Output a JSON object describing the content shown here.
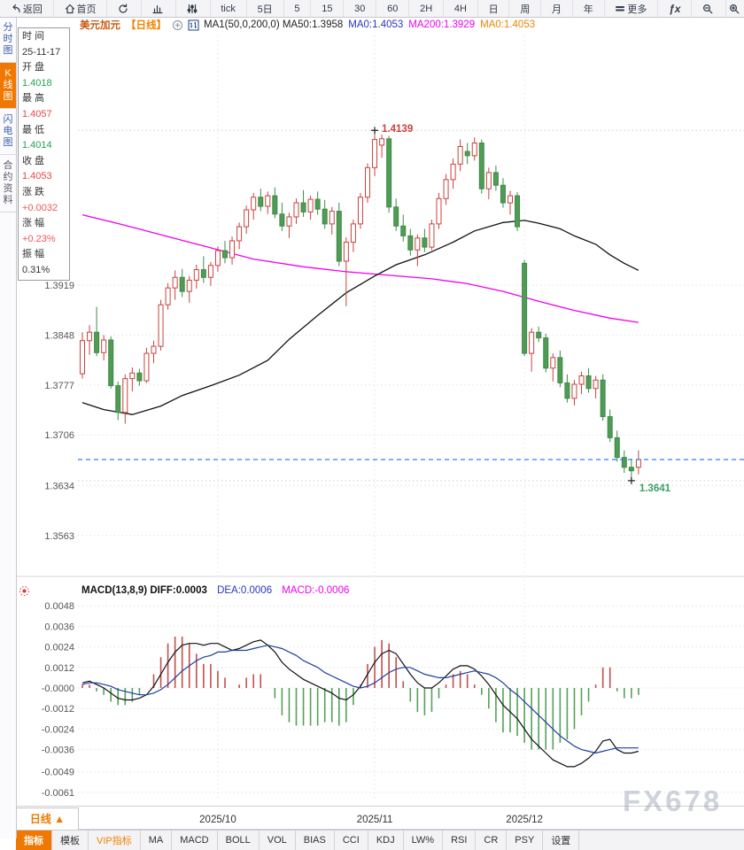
{
  "toolbar": {
    "items": [
      {
        "id": "back",
        "icon": "back",
        "label": "返回"
      },
      {
        "id": "home",
        "icon": "home",
        "label": "首页"
      },
      {
        "id": "refresh",
        "icon": "refresh",
        "label": ""
      },
      {
        "id": "chart-style",
        "icon": "bar-chart",
        "label": ""
      },
      {
        "id": "indicator-settings",
        "icon": "sliders",
        "label": ""
      },
      {
        "id": "period-tick",
        "icon": "",
        "label": "tick"
      },
      {
        "id": "period-5d",
        "icon": "",
        "label": "5日"
      },
      {
        "id": "period-5",
        "icon": "",
        "label": "5"
      },
      {
        "id": "period-15",
        "icon": "",
        "label": "15"
      },
      {
        "id": "period-30",
        "icon": "",
        "label": "30"
      },
      {
        "id": "period-60",
        "icon": "",
        "label": "60"
      },
      {
        "id": "period-2h",
        "icon": "",
        "label": "2H"
      },
      {
        "id": "period-4h",
        "icon": "",
        "label": "4H"
      },
      {
        "id": "period-day",
        "icon": "",
        "label": "日"
      },
      {
        "id": "period-week",
        "icon": "",
        "label": "周"
      },
      {
        "id": "period-month",
        "icon": "",
        "label": "月"
      },
      {
        "id": "period-year",
        "icon": "",
        "label": "年"
      },
      {
        "id": "more",
        "icon": "menu",
        "label": "更多"
      },
      {
        "id": "fx",
        "icon": "",
        "label": "ƒx"
      },
      {
        "id": "zoom-out",
        "icon": "magnifier-minus",
        "label": ""
      },
      {
        "id": "zoom-in",
        "icon": "magnifier-plus",
        "label": ""
      }
    ]
  },
  "title_bar": {
    "symbol": "美元加元",
    "period": "【日线】",
    "ma_group": "MA1(50,0,200,0) MA50:1.3958",
    "ma0_blue": "MA0:1.4053",
    "ma200": "MA200:1.3929",
    "ma0_orange": "MA0:1.4053"
  },
  "side_tabs": [
    {
      "label": "分时图",
      "active": false,
      "color": "#3c5db0"
    },
    {
      "label": "K线图",
      "active": true,
      "color": "#ffffff"
    },
    {
      "label": "闪电图",
      "active": false,
      "color": "#3c5db0"
    },
    {
      "label": "合约资料",
      "active": false,
      "color": "#555566"
    }
  ],
  "info_panel": {
    "rows": [
      {
        "label": "时 间",
        "value": "25-11-17",
        "color": "#333333"
      },
      {
        "label": "开 盘",
        "value": "1.4018",
        "color": "#21a453"
      },
      {
        "label": "最 高",
        "value": "1.4057",
        "color": "#ef4444"
      },
      {
        "label": "最 低",
        "value": "1.4014",
        "color": "#21a453"
      },
      {
        "label": "收 盘",
        "value": "1.4053",
        "color": "#ef4444"
      },
      {
        "label": "涨 跌",
        "value": "+0.0032",
        "color": "#f05858"
      },
      {
        "label": "涨 幅",
        "value": "+0.23%",
        "color": "#f05858"
      },
      {
        "label": "振 幅",
        "value": "0.31%",
        "color": "#333333"
      }
    ]
  },
  "chart_data": {
    "type": "candlestick",
    "title": "美元加元 日线",
    "y_axis_labels": [
      "1.3919",
      "1.3848",
      "1.3777",
      "1.3706",
      "1.3634",
      "1.3563"
    ],
    "x_ticks": [
      {
        "label": "2025/10",
        "index": 19
      },
      {
        "label": "2025/11",
        "index": 41
      },
      {
        "label": "2025/12",
        "index": 62
      }
    ],
    "annotations": {
      "high_label": "1.4139",
      "high_value": 1.4139,
      "high_index": 41,
      "low_label": "1.3641",
      "low_value": 1.3641,
      "low_index": 77
    },
    "current_price": 1.3671,
    "candles": [
      [
        1.3793,
        1.3852,
        1.3786,
        1.384
      ],
      [
        1.384,
        1.3862,
        1.382,
        1.3852
      ],
      [
        1.3852,
        1.3888,
        1.3818,
        1.3823
      ],
      [
        1.3823,
        1.3848,
        1.3812,
        1.3841
      ],
      [
        1.3841,
        1.3846,
        1.3772,
        1.3776
      ],
      [
        1.3776,
        1.3782,
        1.3727,
        1.3738
      ],
      [
        1.3738,
        1.3792,
        1.3722,
        1.3786
      ],
      [
        1.3786,
        1.3802,
        1.3768,
        1.3794
      ],
      [
        1.3794,
        1.38,
        1.3776,
        1.3783
      ],
      [
        1.3783,
        1.383,
        1.378,
        1.3822
      ],
      [
        1.3822,
        1.384,
        1.3808,
        1.3832
      ],
      [
        1.3832,
        1.3898,
        1.3826,
        1.3891
      ],
      [
        1.3891,
        1.3922,
        1.3884,
        1.3915
      ],
      [
        1.3915,
        1.394,
        1.3898,
        1.393
      ],
      [
        1.393,
        1.3942,
        1.3902,
        1.391
      ],
      [
        1.391,
        1.3932,
        1.3894,
        1.3926
      ],
      [
        1.3926,
        1.3948,
        1.3914,
        1.3941
      ],
      [
        1.3941,
        1.396,
        1.3922,
        1.393
      ],
      [
        1.393,
        1.3952,
        1.3918,
        1.3947
      ],
      [
        1.3947,
        1.3974,
        1.3938,
        1.3968
      ],
      [
        1.3968,
        1.3982,
        1.395,
        1.3958
      ],
      [
        1.3958,
        1.3988,
        1.3948,
        1.3982
      ],
      [
        1.3982,
        1.4008,
        1.397,
        1.4002
      ],
      [
        1.4002,
        1.4032,
        1.3992,
        1.4026
      ],
      [
        1.4026,
        1.405,
        1.4012,
        1.4044
      ],
      [
        1.4044,
        1.4056,
        1.4024,
        1.4031
      ],
      [
        1.4031,
        1.4052,
        1.402,
        1.4046
      ],
      [
        1.4046,
        1.4058,
        1.4014,
        1.402
      ],
      [
        1.402,
        1.4036,
        1.3996,
        1.4003
      ],
      [
        1.4003,
        1.4022,
        1.3986,
        1.4016
      ],
      [
        1.4016,
        1.4042,
        1.4006,
        1.4036
      ],
      [
        1.4036,
        1.4054,
        1.4016,
        1.4023
      ],
      [
        1.4023,
        1.4046,
        1.4012,
        1.4041
      ],
      [
        1.4041,
        1.4052,
        1.4019,
        1.4027
      ],
      [
        1.4027,
        1.404,
        1.3999,
        1.4006
      ],
      [
        1.4006,
        1.403,
        1.3991,
        1.4024
      ],
      [
        1.4024,
        1.4036,
        1.3946,
        1.3953
      ],
      [
        1.3953,
        1.3987,
        1.3889,
        1.398
      ],
      [
        1.398,
        1.4012,
        1.3966,
        1.4006
      ],
      [
        1.4006,
        1.405,
        1.3999,
        1.4044
      ],
      [
        1.4044,
        1.4092,
        1.4036,
        1.4086
      ],
      [
        1.4086,
        1.4139,
        1.4074,
        1.4126
      ],
      [
        1.4118,
        1.4133,
        1.41,
        1.4127
      ],
      [
        1.4127,
        1.4131,
        1.4022,
        1.403
      ],
      [
        1.403,
        1.4042,
        1.3996,
        1.4003
      ],
      [
        1.4003,
        1.4019,
        1.3981,
        1.3989
      ],
      [
        1.3989,
        1.3999,
        1.3961,
        1.3969
      ],
      [
        1.3969,
        1.3991,
        1.3946,
        1.3986
      ],
      [
        1.3986,
        1.3999,
        1.3966,
        1.3973
      ],
      [
        1.3973,
        1.4012,
        1.3969,
        1.4006
      ],
      [
        1.4006,
        1.405,
        1.3999,
        1.4042
      ],
      [
        1.4042,
        1.4077,
        1.4033,
        1.4069
      ],
      [
        1.4069,
        1.4099,
        1.4056,
        1.4091
      ],
      [
        1.4091,
        1.4126,
        1.4081,
        1.4116
      ],
      [
        1.4109,
        1.4121,
        1.4091,
        1.4103
      ],
      [
        1.4103,
        1.4129,
        1.4096,
        1.4121
      ],
      [
        1.4121,
        1.4126,
        1.4049,
        1.4056
      ],
      [
        1.4056,
        1.4086,
        1.4041,
        1.4079
      ],
      [
        1.4079,
        1.4089,
        1.4053,
        1.4061
      ],
      [
        1.4061,
        1.4071,
        1.4029,
        1.4036
      ],
      [
        1.4036,
        1.4053,
        1.4019,
        1.4046
      ],
      [
        1.4046,
        1.4051,
        1.3996,
        1.4002
      ],
      [
        1.395,
        1.3955,
        1.3818,
        1.3822
      ],
      [
        1.3822,
        1.3858,
        1.3796,
        1.3852
      ],
      [
        1.3852,
        1.386,
        1.3838,
        1.3844
      ],
      [
        1.3844,
        1.385,
        1.3795,
        1.3801
      ],
      [
        1.3801,
        1.3822,
        1.3782,
        1.3816
      ],
      [
        1.3816,
        1.3826,
        1.3774,
        1.378
      ],
      [
        1.378,
        1.3792,
        1.3752,
        1.3758
      ],
      [
        1.3758,
        1.3784,
        1.3748,
        1.3778
      ],
      [
        1.3778,
        1.3796,
        1.3764,
        1.379
      ],
      [
        1.379,
        1.3801,
        1.3766,
        1.3772
      ],
      [
        1.3772,
        1.379,
        1.3758,
        1.3784
      ],
      [
        1.3784,
        1.3792,
        1.3726,
        1.3732
      ],
      [
        1.3732,
        1.3742,
        1.3696,
        1.3702
      ],
      [
        1.3702,
        1.3712,
        1.3668,
        1.3674
      ],
      [
        1.3674,
        1.3684,
        1.3652,
        1.366
      ],
      [
        1.366,
        1.3672,
        1.3641,
        1.3655
      ],
      [
        1.366,
        1.3684,
        1.365,
        1.3671
      ]
    ],
    "ma50": {
      "name": "MA50",
      "color": "#111111",
      "points": [
        [
          0,
          1.3752
        ],
        [
          3,
          1.3742
        ],
        [
          7,
          1.3735
        ],
        [
          11,
          1.3747
        ],
        [
          14,
          1.3762
        ],
        [
          18,
          1.3776
        ],
        [
          22,
          1.3791
        ],
        [
          26,
          1.3812
        ],
        [
          29,
          1.3842
        ],
        [
          33,
          1.3876
        ],
        [
          37,
          1.3908
        ],
        [
          41,
          1.3932
        ],
        [
          44,
          1.3948
        ],
        [
          48,
          1.3962
        ],
        [
          52,
          1.398
        ],
        [
          55,
          1.3996
        ],
        [
          59,
          1.4008
        ],
        [
          62,
          1.4011
        ],
        [
          64,
          1.4007
        ],
        [
          67,
          1.3999
        ],
        [
          69,
          1.3989
        ],
        [
          72,
          1.3977
        ],
        [
          74,
          1.3962
        ],
        [
          76,
          1.395
        ],
        [
          78,
          1.394
        ]
      ]
    },
    "ma200": {
      "name": "MA200",
      "color": "#ee00ee",
      "points": [
        [
          0,
          1.4019
        ],
        [
          6,
          1.4004
        ],
        [
          12,
          1.3988
        ],
        [
          18,
          1.3972
        ],
        [
          24,
          1.3956
        ],
        [
          31,
          1.3945
        ],
        [
          37,
          1.3938
        ],
        [
          43,
          1.3933
        ],
        [
          49,
          1.3928
        ],
        [
          54,
          1.3921
        ],
        [
          59,
          1.391
        ],
        [
          64,
          1.3896
        ],
        [
          69,
          1.3883
        ],
        [
          74,
          1.3872
        ],
        [
          78,
          1.3866
        ]
      ]
    },
    "macd": {
      "header_black": "MACD(13,8,9) DIFF:0.0003",
      "header_dea": "DEA:0.0006",
      "header_macd": "MACD:-0.0006",
      "y_axis_labels": [
        "0.0048",
        "0.0036",
        "0.0024",
        "0.0012",
        "-0.0000",
        "-0.0012",
        "-0.0024",
        "-0.0036",
        "-0.0049",
        "-0.0061"
      ],
      "diff": [
        0.0003,
        0.0004,
        0.0002,
        0.0,
        -0.0003,
        -0.0006,
        -0.0007,
        -0.0007,
        -0.0006,
        -0.0004,
        0.0001,
        0.0008,
        0.0015,
        0.0021,
        0.0025,
        0.0026,
        0.0026,
        0.0025,
        0.0026,
        0.0026,
        0.0024,
        0.0022,
        0.0023,
        0.0025,
        0.0027,
        0.0028,
        0.0025,
        0.0021,
        0.0015,
        0.0011,
        0.0008,
        0.0005,
        0.0003,
        0.0001,
        -0.0001,
        -0.0003,
        -0.0006,
        -0.0007,
        -0.0004,
        0.0001,
        0.0008,
        0.0015,
        0.002,
        0.0022,
        0.002,
        0.0014,
        0.0008,
        0.0003,
        0.0,
        0.0,
        0.0003,
        0.0007,
        0.0011,
        0.0013,
        0.0013,
        0.0011,
        0.0007,
        0.0002,
        -0.0004,
        -0.001,
        -0.0014,
        -0.0018,
        -0.0024,
        -0.003,
        -0.0034,
        -0.0038,
        -0.0042,
        -0.0044,
        -0.0046,
        -0.0046,
        -0.0044,
        -0.0041,
        -0.0037,
        -0.0031,
        -0.003,
        -0.0036,
        -0.0038,
        -0.0038,
        -0.0037
      ],
      "dea": [
        0.0002,
        0.0003,
        0.0003,
        0.0002,
        0.0001,
        -0.0001,
        -0.0002,
        -0.0003,
        -0.0004,
        -0.0004,
        -0.0003,
        -0.0001,
        0.0002,
        0.0006,
        0.001,
        0.0013,
        0.0016,
        0.0018,
        0.0019,
        0.0021,
        0.0021,
        0.0022,
        0.0022,
        0.0022,
        0.0023,
        0.0024,
        0.0025,
        0.0024,
        0.0023,
        0.0021,
        0.0019,
        0.0016,
        0.0014,
        0.0012,
        0.0009,
        0.0007,
        0.0005,
        0.0003,
        0.0001,
        0.0,
        0.0001,
        0.0003,
        0.0006,
        0.0009,
        0.0011,
        0.0012,
        0.0012,
        0.001,
        0.0008,
        0.0007,
        0.0006,
        0.0006,
        0.0007,
        0.0008,
        0.0009,
        0.001,
        0.0009,
        0.0008,
        0.0006,
        0.0003,
        -0.0001,
        -0.0004,
        -0.0008,
        -0.0012,
        -0.0016,
        -0.002,
        -0.0024,
        -0.0028,
        -0.0031,
        -0.0034,
        -0.0036,
        -0.0037,
        -0.0038,
        -0.0037,
        -0.0036,
        -0.0035,
        -0.0035,
        -0.0035,
        -0.0035
      ]
    }
  },
  "bottom": {
    "period_button": "日线 ▲",
    "tabs": [
      {
        "label": "指标",
        "state": "active"
      },
      {
        "label": "模板",
        "state": "normal"
      },
      {
        "label": "VIP指标",
        "state": "vip"
      },
      {
        "label": "MA",
        "state": "normal"
      },
      {
        "label": "MACD",
        "state": "normal"
      },
      {
        "label": "BOLL",
        "state": "normal"
      },
      {
        "label": "VOL",
        "state": "normal"
      },
      {
        "label": "BIAS",
        "state": "normal"
      },
      {
        "label": "CCI",
        "state": "normal"
      },
      {
        "label": "KDJ",
        "state": "normal"
      },
      {
        "label": "LW%",
        "state": "normal"
      },
      {
        "label": "RSI",
        "state": "normal"
      },
      {
        "label": "CR",
        "state": "normal"
      },
      {
        "label": "PSY",
        "state": "normal"
      },
      {
        "label": "设置",
        "state": "normal"
      }
    ]
  },
  "watermark": "FX678",
  "colors": {
    "up": "#c8423d",
    "down": "#4f9c55",
    "down_stroke": "#3f8947",
    "ma50": "#111111",
    "ma200": "#ee00ee",
    "diff_line": "#111111",
    "dea_line": "#1f3fa0",
    "accent": "#f07800",
    "price_line": "#2f7df6"
  }
}
